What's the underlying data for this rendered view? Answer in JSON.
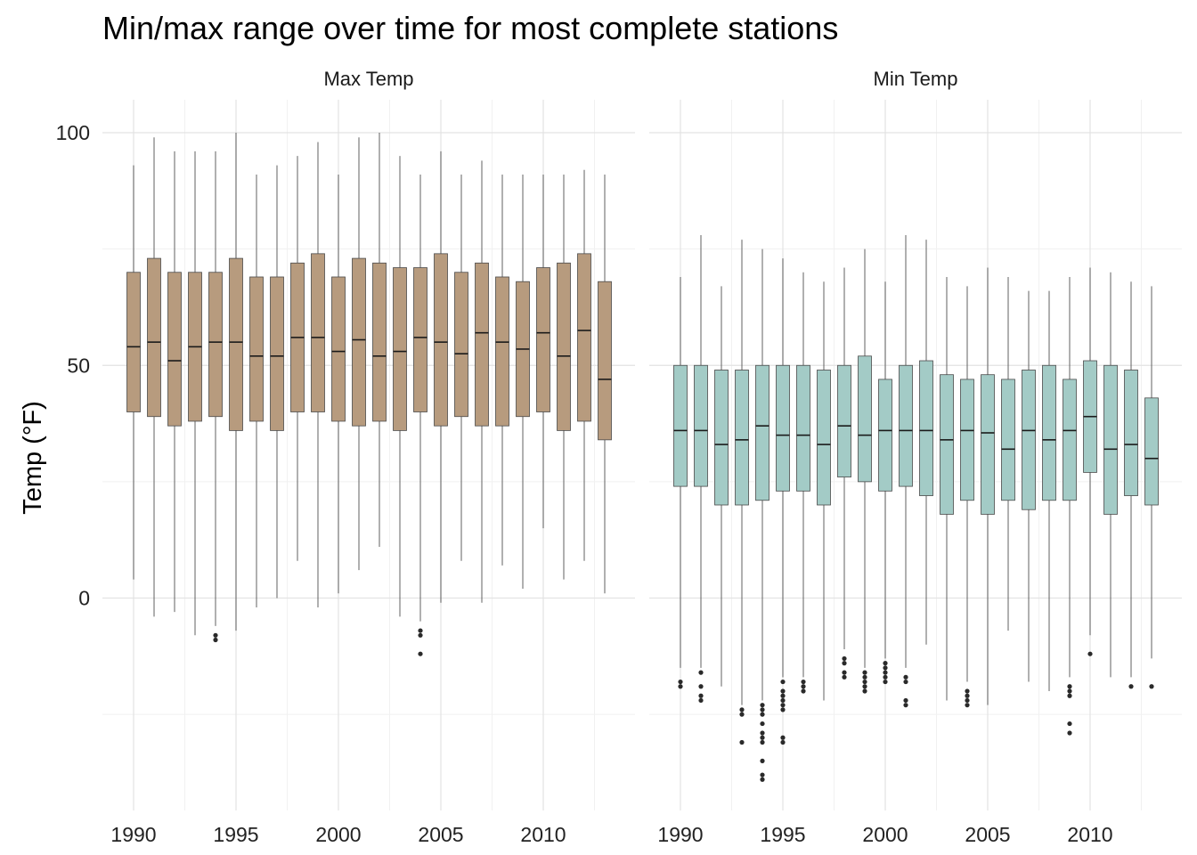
{
  "chart_data": {
    "type": "boxplot",
    "title": "Min/max range over time for most complete stations",
    "ylabel": "Temp (°F)",
    "xlabel": "",
    "xlim": [
      1989.5,
      2013.8
    ],
    "ylim": [
      -45,
      107
    ],
    "x_ticks": [
      1990,
      1995,
      2000,
      2005,
      2010
    ],
    "y_ticks": [
      0,
      50,
      100
    ],
    "grid": true,
    "legend": "none",
    "facets": [
      {
        "label": "Max Temp",
        "color": "#b79b7e",
        "boxes": [
          {
            "x": 1990,
            "whisker_low": 4,
            "q1": 40,
            "median": 54,
            "q3": 70,
            "whisker_high": 93,
            "outliers": []
          },
          {
            "x": 1991,
            "whisker_low": -4,
            "q1": 39,
            "median": 55,
            "q3": 73,
            "whisker_high": 99,
            "outliers": []
          },
          {
            "x": 1992,
            "whisker_low": -3,
            "q1": 37,
            "median": 51,
            "q3": 70,
            "whisker_high": 96,
            "outliers": []
          },
          {
            "x": 1993,
            "whisker_low": -8,
            "q1": 38,
            "median": 54,
            "q3": 70,
            "whisker_high": 96,
            "outliers": []
          },
          {
            "x": 1994,
            "whisker_low": -6,
            "q1": 39,
            "median": 55,
            "q3": 70,
            "whisker_high": 96,
            "outliers": [
              -8,
              -9
            ]
          },
          {
            "x": 1995,
            "whisker_low": -7,
            "q1": 36,
            "median": 55,
            "q3": 73,
            "whisker_high": 100,
            "outliers": []
          },
          {
            "x": 1996,
            "whisker_low": -2,
            "q1": 38,
            "median": 52,
            "q3": 69,
            "whisker_high": 91,
            "outliers": []
          },
          {
            "x": 1997,
            "whisker_low": 0,
            "q1": 36,
            "median": 52,
            "q3": 69,
            "whisker_high": 93,
            "outliers": []
          },
          {
            "x": 1998,
            "whisker_low": 8,
            "q1": 40,
            "median": 56,
            "q3": 72,
            "whisker_high": 95,
            "outliers": []
          },
          {
            "x": 1999,
            "whisker_low": -2,
            "q1": 40,
            "median": 56,
            "q3": 74,
            "whisker_high": 98,
            "outliers": []
          },
          {
            "x": 2000,
            "whisker_low": 1,
            "q1": 38,
            "median": 53,
            "q3": 69,
            "whisker_high": 91,
            "outliers": []
          },
          {
            "x": 2001,
            "whisker_low": 6,
            "q1": 37,
            "median": 55.5,
            "q3": 73,
            "whisker_high": 99,
            "outliers": []
          },
          {
            "x": 2002,
            "whisker_low": 11,
            "q1": 38,
            "median": 52,
            "q3": 72,
            "whisker_high": 100,
            "outliers": []
          },
          {
            "x": 2003,
            "whisker_low": -4,
            "q1": 36,
            "median": 53,
            "q3": 71,
            "whisker_high": 95,
            "outliers": []
          },
          {
            "x": 2004,
            "whisker_low": -5,
            "q1": 40,
            "median": 56,
            "q3": 71,
            "whisker_high": 91,
            "outliers": [
              -7,
              -8,
              -12
            ]
          },
          {
            "x": 2005,
            "whisker_low": -1,
            "q1": 37,
            "median": 55,
            "q3": 74,
            "whisker_high": 96,
            "outliers": []
          },
          {
            "x": 2006,
            "whisker_low": 8,
            "q1": 39,
            "median": 52.5,
            "q3": 70,
            "whisker_high": 91,
            "outliers": []
          },
          {
            "x": 2007,
            "whisker_low": -1,
            "q1": 37,
            "median": 57,
            "q3": 72,
            "whisker_high": 94,
            "outliers": []
          },
          {
            "x": 2008,
            "whisker_low": 7,
            "q1": 37,
            "median": 55,
            "q3": 69,
            "whisker_high": 91,
            "outliers": []
          },
          {
            "x": 2009,
            "whisker_low": 2,
            "q1": 39,
            "median": 53.5,
            "q3": 68,
            "whisker_high": 91,
            "outliers": []
          },
          {
            "x": 2010,
            "whisker_low": 15,
            "q1": 40,
            "median": 57,
            "q3": 71,
            "whisker_high": 91,
            "outliers": []
          },
          {
            "x": 2011,
            "whisker_low": 4,
            "q1": 36,
            "median": 52,
            "q3": 72,
            "whisker_high": 91,
            "outliers": []
          },
          {
            "x": 2012,
            "whisker_low": 8,
            "q1": 38,
            "median": 57.5,
            "q3": 74,
            "whisker_high": 92,
            "outliers": []
          },
          {
            "x": 2013,
            "whisker_low": 1,
            "q1": 34,
            "median": 47,
            "q3": 68,
            "whisker_high": 91,
            "outliers": []
          }
        ]
      },
      {
        "label": "Min Temp",
        "color": "#a3cbc6",
        "boxes": [
          {
            "x": 1990,
            "whisker_low": -15,
            "q1": 24,
            "median": 36,
            "q3": 50,
            "whisker_high": 69,
            "outliers": [
              -18,
              -19
            ]
          },
          {
            "x": 1991,
            "whisker_low": -15,
            "q1": 24,
            "median": 36,
            "q3": 50,
            "whisker_high": 78,
            "outliers": [
              -16,
              -19,
              -21,
              -22
            ]
          },
          {
            "x": 1992,
            "whisker_low": -19,
            "q1": 20,
            "median": 33,
            "q3": 49,
            "whisker_high": 67,
            "outliers": []
          },
          {
            "x": 1993,
            "whisker_low": -23,
            "q1": 20,
            "median": 34,
            "q3": 49,
            "whisker_high": 77,
            "outliers": [
              -24,
              -25,
              -31
            ]
          },
          {
            "x": 1994,
            "whisker_low": -22,
            "q1": 21,
            "median": 37,
            "q3": 50,
            "whisker_high": 75,
            "outliers": [
              -23,
              -24,
              -25,
              -27,
              -29,
              -30,
              -31,
              -35,
              -38,
              -39
            ]
          },
          {
            "x": 1995,
            "whisker_low": -17,
            "q1": 23,
            "median": 35,
            "q3": 50,
            "whisker_high": 73,
            "outliers": [
              -18,
              -20,
              -21,
              -22,
              -23,
              -24,
              -30,
              -31
            ]
          },
          {
            "x": 1996,
            "whisker_low": -17,
            "q1": 23,
            "median": 35,
            "q3": 50,
            "whisker_high": 70,
            "outliers": [
              -18,
              -19,
              -20
            ]
          },
          {
            "x": 1997,
            "whisker_low": -22,
            "q1": 20,
            "median": 33,
            "q3": 49,
            "whisker_high": 68,
            "outliers": []
          },
          {
            "x": 1998,
            "whisker_low": -11,
            "q1": 26,
            "median": 37,
            "q3": 50,
            "whisker_high": 71,
            "outliers": [
              -13,
              -14,
              -16,
              -17
            ]
          },
          {
            "x": 1999,
            "whisker_low": -15,
            "q1": 25,
            "median": 35,
            "q3": 52,
            "whisker_high": 75,
            "outliers": [
              -16,
              -17,
              -18,
              -19,
              -20
            ]
          },
          {
            "x": 2000,
            "whisker_low": -13,
            "q1": 23,
            "median": 36,
            "q3": 47,
            "whisker_high": 68,
            "outliers": [
              -14,
              -15,
              -16,
              -17,
              -18
            ]
          },
          {
            "x": 2001,
            "whisker_low": -15,
            "q1": 24,
            "median": 36,
            "q3": 50,
            "whisker_high": 78,
            "outliers": [
              -17,
              -18,
              -22,
              -23
            ]
          },
          {
            "x": 2002,
            "whisker_low": -10,
            "q1": 22,
            "median": 36,
            "q3": 51,
            "whisker_high": 77,
            "outliers": []
          },
          {
            "x": 2003,
            "whisker_low": -22,
            "q1": 18,
            "median": 34,
            "q3": 48,
            "whisker_high": 69,
            "outliers": []
          },
          {
            "x": 2004,
            "whisker_low": -18,
            "q1": 21,
            "median": 36,
            "q3": 47,
            "whisker_high": 67,
            "outliers": [
              -20,
              -21,
              -22,
              -23
            ]
          },
          {
            "x": 2005,
            "whisker_low": -23,
            "q1": 18,
            "median": 35.5,
            "q3": 48,
            "whisker_high": 71,
            "outliers": []
          },
          {
            "x": 2006,
            "whisker_low": -7,
            "q1": 21,
            "median": 32,
            "q3": 47,
            "whisker_high": 69,
            "outliers": []
          },
          {
            "x": 2007,
            "whisker_low": -18,
            "q1": 19,
            "median": 36,
            "q3": 49,
            "whisker_high": 66,
            "outliers": []
          },
          {
            "x": 2008,
            "whisker_low": -20,
            "q1": 21,
            "median": 34,
            "q3": 50,
            "whisker_high": 66,
            "outliers": []
          },
          {
            "x": 2009,
            "whisker_low": -17,
            "q1": 21,
            "median": 36,
            "q3": 47,
            "whisker_high": 69,
            "outliers": [
              -19,
              -20,
              -21,
              -27,
              -29
            ]
          },
          {
            "x": 2010,
            "whisker_low": -8,
            "q1": 27,
            "median": 39,
            "q3": 51,
            "whisker_high": 71,
            "outliers": [
              -12
            ]
          },
          {
            "x": 2011,
            "whisker_low": -17,
            "q1": 18,
            "median": 32,
            "q3": 50,
            "whisker_high": 70,
            "outliers": []
          },
          {
            "x": 2012,
            "whisker_low": -17,
            "q1": 22,
            "median": 33,
            "q3": 49,
            "whisker_high": 68,
            "outliers": [
              -19
            ]
          },
          {
            "x": 2013,
            "whisker_low": -13,
            "q1": 20,
            "median": 30,
            "q3": 43,
            "whisker_high": 67,
            "outliers": [
              -19
            ]
          }
        ]
      }
    ]
  }
}
